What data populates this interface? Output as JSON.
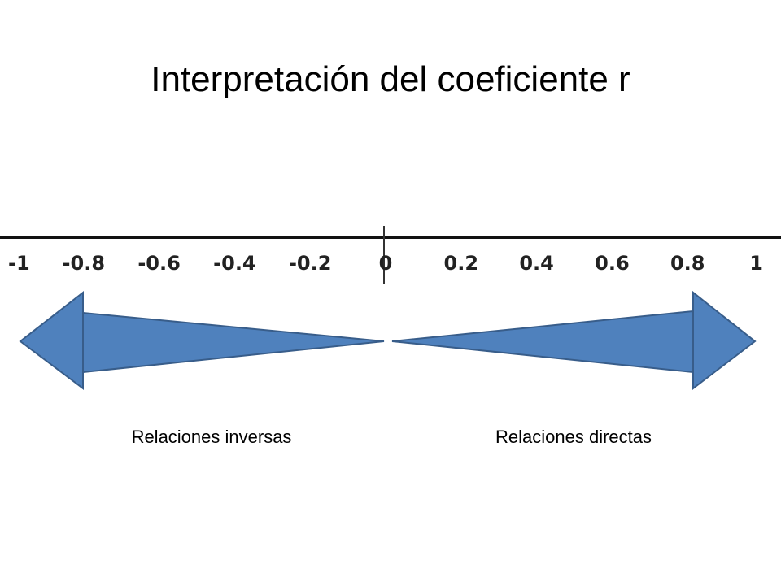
{
  "title": "Interpretación del coeficiente r",
  "axis": {
    "ticks": [
      "-1",
      "-0.8",
      "-0.6",
      "-0.4",
      "-0.2",
      "0",
      "0.2",
      "0.4",
      "0.6",
      "0.8",
      "1"
    ]
  },
  "captions": {
    "left": "Relaciones inversas",
    "right": "Relaciones directas"
  }
}
